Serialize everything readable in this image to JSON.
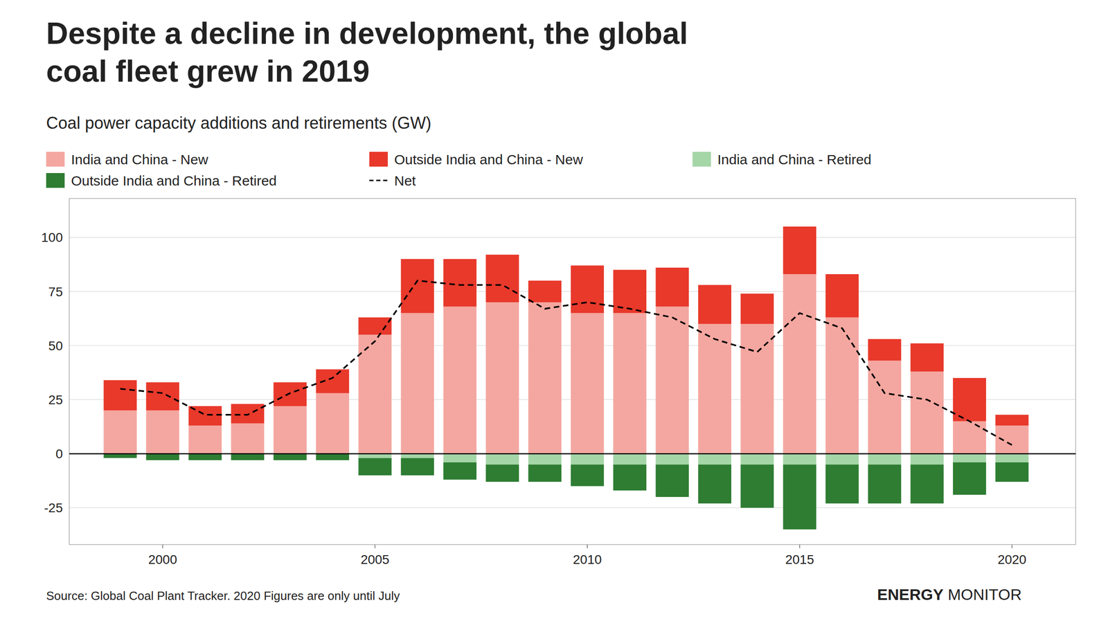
{
  "chart_data": {
    "type": "bar",
    "title": [
      "Despite a decline in development, the global",
      "coal fleet grew in 2019"
    ],
    "subtitle": "Coal power capacity additions and retirements (GW)",
    "annotations": [
      "Source: Global Coal Plant Tracker. 2020 Figures are only until July",
      "ENERGY",
      "MONITOR"
    ],
    "x": [
      1999,
      2000,
      2001,
      2002,
      2003,
      2004,
      2005,
      2006,
      2007,
      2008,
      2009,
      2010,
      2011,
      2012,
      2013,
      2014,
      2015,
      2016,
      2017,
      2018,
      2019,
      2020
    ],
    "series": [
      {
        "name": "India and China - New",
        "color": "#f4a7a0",
        "values": [
          20,
          20,
          13,
          14,
          22,
          28,
          55,
          65,
          68,
          70,
          70,
          65,
          65,
          68,
          60,
          60,
          83,
          63,
          43,
          38,
          15,
          13
        ]
      },
      {
        "name": "Outside India and China - New",
        "color": "#e8392b",
        "values": [
          14,
          13,
          9,
          9,
          11,
          11,
          8,
          25,
          22,
          22,
          10,
          22,
          20,
          18,
          18,
          14,
          22,
          20,
          10,
          13,
          20,
          5
        ]
      },
      {
        "name": "India and China - Retired",
        "color": "#a5d6a7",
        "values": [
          0,
          0,
          0,
          0,
          0,
          0,
          -2,
          -2,
          -4,
          -5,
          -5,
          -5,
          -5,
          -5,
          -5,
          -5,
          -5,
          -5,
          -5,
          -5,
          -4,
          -4
        ]
      },
      {
        "name": "Outside India and China - Retired",
        "color": "#2e7d32",
        "values": [
          -2,
          -3,
          -3,
          -3,
          -3,
          -3,
          -8,
          -8,
          -8,
          -8,
          -8,
          -10,
          -12,
          -15,
          -18,
          -20,
          -30,
          -18,
          -18,
          -18,
          -15,
          -9
        ]
      },
      {
        "name": "Net",
        "type": "line",
        "color": "#000000",
        "line_style": "dashed",
        "values": [
          30,
          28,
          18,
          18,
          28,
          35,
          52,
          80,
          78,
          78,
          67,
          70,
          67,
          63,
          53,
          47,
          65,
          58,
          28,
          25,
          15,
          4
        ]
      }
    ],
    "stacked": true,
    "xlim": [
      1997.8,
      2021.5
    ],
    "xticks": [
      2000,
      2005,
      2010,
      2015,
      2020
    ],
    "ylim": [
      -42,
      118
    ],
    "yticks": [
      -25,
      0,
      25,
      50,
      75,
      100
    ],
    "grid": true,
    "legend": "top"
  }
}
